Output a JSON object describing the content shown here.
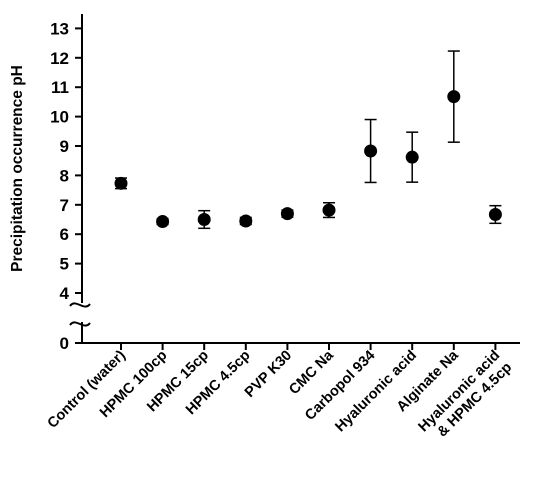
{
  "chart_data": {
    "type": "scatter",
    "title": "",
    "xlabel": "",
    "ylabel": "Precipitation occurrence pH",
    "ylim": [
      0,
      13
    ],
    "axis_break": "between 0 and 4",
    "y_ticks": [
      "0",
      "4",
      "5",
      "6",
      "7",
      "8",
      "9",
      "10",
      "11",
      "12",
      "13"
    ],
    "categories": [
      [
        "Control (water)"
      ],
      [
        "HPMC 100cp"
      ],
      [
        "HPMC 15cp"
      ],
      [
        "HPMC 4.5cp"
      ],
      [
        "PVP K30"
      ],
      [
        "CMC Na"
      ],
      [
        "Carbopol 934"
      ],
      [
        "Hyaluronic acid"
      ],
      [
        "Alginate Na"
      ],
      [
        "Hyaluronic acid",
        "& HPMC 4.5cp"
      ]
    ],
    "values": [
      7.73,
      6.43,
      6.5,
      6.45,
      6.7,
      6.82,
      8.83,
      8.62,
      10.68,
      6.67
    ],
    "error": [
      0.18,
      0.1,
      0.3,
      0.12,
      0.12,
      0.25,
      1.07,
      0.85,
      1.55,
      0.3
    ],
    "marker_color": "#000000",
    "grid": false,
    "legend": "none"
  }
}
